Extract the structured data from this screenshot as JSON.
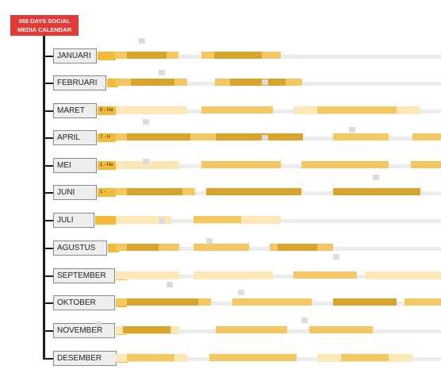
{
  "title": "365 DAYS SOCIAL\nMEDIA CALENDAR",
  "months": [
    {
      "name": "JANUARI",
      "tab_label": ""
    },
    {
      "name": "FEBRUARI",
      "tab_label": ""
    },
    {
      "name": "MARET",
      "tab_label": "8 - Ha"
    },
    {
      "name": "APRIL",
      "tab_label": "7 - H"
    },
    {
      "name": "MEI",
      "tab_label": "1 - Ha"
    },
    {
      "name": "JUNI",
      "tab_label": "1 -"
    },
    {
      "name": "JULI",
      "tab_label": ""
    },
    {
      "name": "AGUSTUS",
      "tab_label": ""
    },
    {
      "name": "SEPTEMBER",
      "tab_label": ""
    },
    {
      "name": "OKTOBER",
      "tab_label": ""
    },
    {
      "name": "NOVEMBER",
      "tab_label": ""
    },
    {
      "name": "DESEMBER",
      "tab_label": ""
    }
  ],
  "colors": {
    "title_bg": "#e53935",
    "spine": "#1e1e1e",
    "tab": "#f3b93a",
    "bar_light": "#fbe7b8",
    "bar_mid": "#f3c862",
    "bar_dark": "#d9a42b",
    "track": "#ebebeb"
  }
}
